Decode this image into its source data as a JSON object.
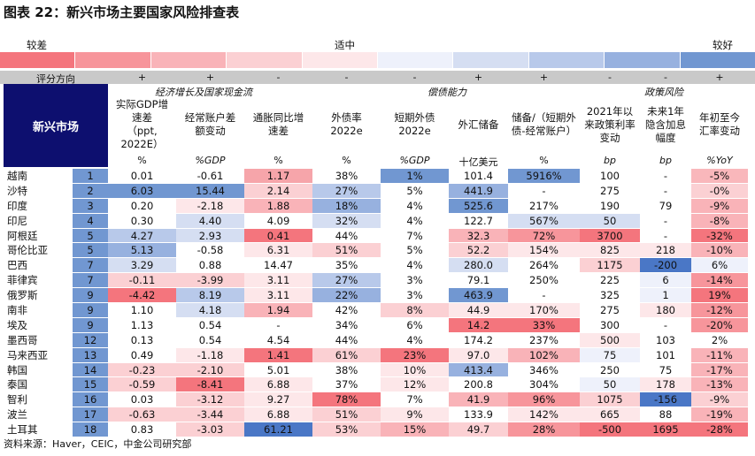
{
  "title": "图表 22：新兴市场主要国家风险排查表",
  "scale": {
    "left": "较差",
    "middle": "适中",
    "right": "较好",
    "colors": [
      "#f4757d",
      "#f7959b",
      "#f9b3b8",
      "#fbd0d3",
      "#fde7e9",
      "#eef1fb",
      "#d5def2",
      "#b8c9ea",
      "#97b1df",
      "#7197d1"
    ]
  },
  "direction": {
    "label": "评分方向",
    "values": [
      "+",
      "+",
      "-",
      "-",
      "-",
      "+",
      "+",
      "-",
      "-",
      "+"
    ]
  },
  "categories": {
    "growth": "经济增长及国家现金流",
    "debt": "偿债能力",
    "policy": "政策风险"
  },
  "corner_label": "新兴市场",
  "columns": [
    {
      "header": "实际GDP增\n速差\n（ppt,\n2022E）",
      "unit": "%"
    },
    {
      "header": "经常账户差\n额变动",
      "unit": "%GDP"
    },
    {
      "header": "通胀同比增\n速差",
      "unit": "%"
    },
    {
      "header": "外债率\n2022e",
      "unit": "%"
    },
    {
      "header": "短期外债\n2022e",
      "unit": "%GDP"
    },
    {
      "header": "外汇储备",
      "unit": "十亿美元"
    },
    {
      "header": "储备/（短期外\n债-经常账户）",
      "unit": "%"
    },
    {
      "header": "2021年以\n来政策利率\n变动",
      "unit": "bp"
    },
    {
      "header": "未来1年\n隐含加息\n幅度",
      "unit": "bp"
    },
    {
      "header": "年初至今\n汇率变动",
      "unit": "%YoY"
    }
  ],
  "rows": [
    {
      "name": "越南",
      "rank": "1",
      "values": [
        "0.01",
        "-0.61",
        "1.17",
        "38%",
        "1%",
        "101.4",
        "5916%",
        "100",
        "-",
        "-5%"
      ],
      "colors": [
        "#ffffff",
        "#ffffff",
        "#f6a5aa",
        "#ffffff",
        "#7197d1",
        "#ffffff",
        "#7197d1",
        "#ffffff",
        "#ffffff",
        "#f9b7bb"
      ]
    },
    {
      "name": "沙特",
      "rank": "2",
      "values": [
        "6.03",
        "15.44",
        "2.14",
        "27%",
        "5%",
        "441.9",
        "-",
        "275",
        "-",
        "-0%"
      ],
      "colors": [
        "#7197d1",
        "#7197d1",
        "#fbd0d3",
        "#b8c9ea",
        "#ffffff",
        "#97b1df",
        "#ffffff",
        "#ffffff",
        "#ffffff",
        "#fbd0d3"
      ]
    },
    {
      "name": "印度",
      "rank": "3",
      "values": [
        "0.20",
        "-2.18",
        "1.88",
        "18%",
        "4%",
        "525.6",
        "217%",
        "190",
        "79",
        "-9%"
      ],
      "colors": [
        "#ffffff",
        "#fde7e9",
        "#f9b3b8",
        "#97b1df",
        "#ffffff",
        "#7197d1",
        "#ffffff",
        "#ffffff",
        "#ffffff",
        "#f9b3b8"
      ]
    },
    {
      "name": "印尼",
      "rank": "4",
      "values": [
        "0.30",
        "4.40",
        "4.09",
        "32%",
        "4%",
        "122.7",
        "567%",
        "50",
        "-",
        "-8%"
      ],
      "colors": [
        "#ffffff",
        "#d5def2",
        "#ffffff",
        "#d5def2",
        "#ffffff",
        "#ffffff",
        "#d5def2",
        "#d5def2",
        "#ffffff",
        "#f9b3b8"
      ]
    },
    {
      "name": "阿根廷",
      "rank": "5",
      "values": [
        "4.27",
        "2.93",
        "0.41",
        "44%",
        "7%",
        "32.3",
        "72%",
        "3700",
        "-",
        "-32%"
      ],
      "colors": [
        "#b8c9ea",
        "#d5def2",
        "#f4757d",
        "#ffffff",
        "#ffffff",
        "#f9b3b8",
        "#f7959b",
        "#f4757d",
        "#ffffff",
        "#f4757d"
      ]
    },
    {
      "name": "哥伦比亚",
      "rank": "5",
      "values": [
        "5.13",
        "-0.58",
        "6.31",
        "51%",
        "5%",
        "52.2",
        "154%",
        "825",
        "218",
        "-10%"
      ],
      "colors": [
        "#97b1df",
        "#ffffff",
        "#fde7e9",
        "#fbd0d3",
        "#ffffff",
        "#fbd0d3",
        "#fde7e9",
        "#fde7e9",
        "#fde7e9",
        "#f9b3b8"
      ]
    },
    {
      "name": "巴西",
      "rank": "7",
      "values": [
        "3.29",
        "0.88",
        "14.47",
        "35%",
        "4%",
        "280.0",
        "264%",
        "1175",
        "-200",
        "6%"
      ],
      "colors": [
        "#d5def2",
        "#ffffff",
        "#ffffff",
        "#ffffff",
        "#ffffff",
        "#d5def2",
        "#ffffff",
        "#fbd0d3",
        "#4a77c6",
        "#eef1fb"
      ]
    },
    {
      "name": "菲律宾",
      "rank": "7",
      "values": [
        "-0.11",
        "-3.99",
        "3.11",
        "27%",
        "3%",
        "79.1",
        "250%",
        "225",
        "6",
        "-14%"
      ],
      "colors": [
        "#fbd0d3",
        "#fbd0d3",
        "#fde7e9",
        "#b8c9ea",
        "#ffffff",
        "#ffffff",
        "#ffffff",
        "#ffffff",
        "#eef1fb",
        "#f7959b"
      ]
    },
    {
      "name": "俄罗斯",
      "rank": "9",
      "values": [
        "-4.42",
        "8.19",
        "3.11",
        "22%",
        "3%",
        "463.9",
        "-",
        "325",
        "1",
        "19%"
      ],
      "colors": [
        "#f4757d",
        "#b8c9ea",
        "#fde7e9",
        "#97b1df",
        "#ffffff",
        "#7197d1",
        "#ffffff",
        "#ffffff",
        "#eef1fb",
        "#f4757d"
      ]
    },
    {
      "name": "南非",
      "rank": "9",
      "values": [
        "1.10",
        "4.18",
        "1.94",
        "42%",
        "8%",
        "44.9",
        "170%",
        "275",
        "180",
        "-12%"
      ],
      "colors": [
        "#ffffff",
        "#d5def2",
        "#f9b3b8",
        "#ffffff",
        "#fbd0d3",
        "#fde7e9",
        "#fde7e9",
        "#ffffff",
        "#fde7e9",
        "#f7959b"
      ]
    },
    {
      "name": "埃及",
      "rank": "9",
      "values": [
        "1.13",
        "0.54",
        "-",
        "34%",
        "6%",
        "14.2",
        "33%",
        "300",
        "-",
        "-20%"
      ],
      "colors": [
        "#ffffff",
        "#ffffff",
        "#ffffff",
        "#ffffff",
        "#ffffff",
        "#f4757d",
        "#f4757d",
        "#ffffff",
        "#ffffff",
        "#f7959b"
      ]
    },
    {
      "name": "墨西哥",
      "rank": "12",
      "values": [
        "0.13",
        "0.54",
        "4.54",
        "44%",
        "4%",
        "174.2",
        "237%",
        "500",
        "103",
        "2%"
      ],
      "colors": [
        "#ffffff",
        "#ffffff",
        "#ffffff",
        "#ffffff",
        "#ffffff",
        "#ffffff",
        "#ffffff",
        "#fde7e9",
        "#ffffff",
        "#ffffff"
      ]
    },
    {
      "name": "马来西亚",
      "rank": "13",
      "values": [
        "0.49",
        "-1.18",
        "1.41",
        "61%",
        "23%",
        "97.0",
        "102%",
        "75",
        "101",
        "-11%"
      ],
      "colors": [
        "#ffffff",
        "#fde7e9",
        "#f4757d",
        "#fbd0d3",
        "#f4757d",
        "#fde7e9",
        "#f9b3b8",
        "#eef1fb",
        "#ffffff",
        "#f9b3b8"
      ]
    },
    {
      "name": "韩国",
      "rank": "14",
      "values": [
        "-0.23",
        "-2.10",
        "5.01",
        "38%",
        "10%",
        "413.4",
        "346%",
        "250",
        "75",
        "-17%"
      ],
      "colors": [
        "#fbd0d3",
        "#fbd0d3",
        "#ffffff",
        "#ffffff",
        "#fde7e9",
        "#97b1df",
        "#ffffff",
        "#ffffff",
        "#ffffff",
        "#f9b3b8"
      ]
    },
    {
      "name": "泰国",
      "rank": "15",
      "values": [
        "-0.59",
        "-8.41",
        "6.88",
        "37%",
        "12%",
        "200.8",
        "304%",
        "50",
        "178",
        "-13%"
      ],
      "colors": [
        "#fbd0d3",
        "#f4757d",
        "#fde7e9",
        "#ffffff",
        "#fde7e9",
        "#ffffff",
        "#ffffff",
        "#eef1fb",
        "#fde7e9",
        "#f9b3b8"
      ]
    },
    {
      "name": "智利",
      "rank": "16",
      "values": [
        "0.03",
        "-3.12",
        "9.27",
        "78%",
        "7%",
        "41.9",
        "96%",
        "1075",
        "-156",
        "-9%"
      ],
      "colors": [
        "#ffffff",
        "#fbd0d3",
        "#fde7e9",
        "#f4757d",
        "#ffffff",
        "#f9b3b8",
        "#f7959b",
        "#fbd0d3",
        "#4a77c6",
        "#fbd0d3"
      ]
    },
    {
      "name": "波兰",
      "rank": "17",
      "values": [
        "-0.63",
        "-3.44",
        "6.88",
        "51%",
        "9%",
        "133.9",
        "142%",
        "665",
        "88",
        "-19%"
      ],
      "colors": [
        "#fbd0d3",
        "#fbd0d3",
        "#fde7e9",
        "#fbd0d3",
        "#fde7e9",
        "#ffffff",
        "#fde7e9",
        "#fde7e9",
        "#ffffff",
        "#f9b3b8"
      ]
    },
    {
      "name": "土耳其",
      "rank": "18",
      "values": [
        "0.83",
        "-3.03",
        "61.21",
        "53%",
        "15%",
        "49.7",
        "28%",
        "-500",
        "1695",
        "-28%"
      ],
      "colors": [
        "#ffffff",
        "#fbd0d3",
        "#4a77c6",
        "#fbd0d3",
        "#f9b3b8",
        "#fbd0d3",
        "#f7959b",
        "#f4757d",
        "#f4757d",
        "#f4757d"
      ]
    }
  ],
  "source": "资料来源：Haver，CEIC，中金公司研究部"
}
